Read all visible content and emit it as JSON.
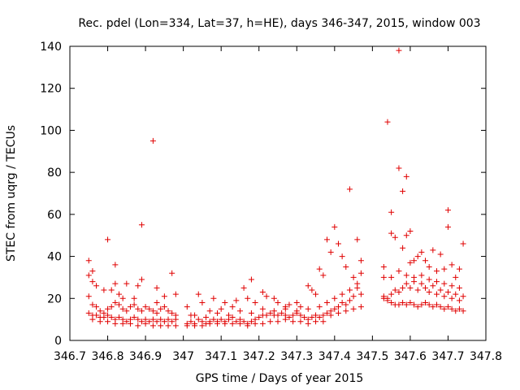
{
  "chart_data": {
    "type": "scatter",
    "title": "Rec. pdel (Lon=334, Lat=37, h=HE), days 346-347, 2015, window 003",
    "xlabel": "GPS time / Days of year 2015",
    "ylabel": "STEC from uqrg / TECUs",
    "xlim": [
      346.7,
      347.8
    ],
    "ylim": [
      0,
      140
    ],
    "xticks": [
      "346.7",
      "346.8",
      "346.9",
      "347",
      "347.1",
      "347.2",
      "347.3",
      "347.4",
      "347.5",
      "347.6",
      "347.7",
      "347.8"
    ],
    "yticks": [
      "0",
      "20",
      "40",
      "60",
      "80",
      "100",
      "120",
      "140"
    ],
    "grid": false,
    "marker": "+",
    "color": "#e00000",
    "series": [
      {
        "name": "",
        "points": [
          [
            346.75,
            38
          ],
          [
            346.75,
            31
          ],
          [
            346.76,
            33
          ],
          [
            346.76,
            28
          ],
          [
            346.77,
            26
          ],
          [
            346.79,
            24
          ],
          [
            346.8,
            48
          ],
          [
            346.81,
            24
          ],
          [
            346.82,
            27
          ],
          [
            346.82,
            36
          ],
          [
            346.84,
            20
          ],
          [
            346.85,
            27
          ],
          [
            346.88,
            26
          ],
          [
            346.89,
            55
          ],
          [
            346.89,
            29
          ],
          [
            346.92,
            95
          ],
          [
            346.93,
            25
          ],
          [
            346.95,
            21
          ],
          [
            346.97,
            32
          ],
          [
            346.98,
            22
          ],
          [
            346.93,
            18
          ],
          [
            346.87,
            20
          ],
          [
            346.83,
            22
          ],
          [
            346.75,
            21
          ],
          [
            346.76,
            17
          ],
          [
            346.77,
            16
          ],
          [
            346.78,
            14
          ],
          [
            346.79,
            13
          ],
          [
            346.8,
            15
          ],
          [
            346.81,
            16
          ],
          [
            346.82,
            18
          ],
          [
            346.83,
            17
          ],
          [
            346.84,
            15
          ],
          [
            346.85,
            14
          ],
          [
            346.86,
            16
          ],
          [
            346.87,
            17
          ],
          [
            346.88,
            15
          ],
          [
            346.89,
            14
          ],
          [
            346.9,
            16
          ],
          [
            346.91,
            15
          ],
          [
            346.92,
            14
          ],
          [
            346.93,
            13
          ],
          [
            346.94,
            15
          ],
          [
            346.95,
            16
          ],
          [
            346.96,
            14
          ],
          [
            346.97,
            13
          ],
          [
            346.98,
            12
          ],
          [
            346.75,
            13
          ],
          [
            346.76,
            12
          ],
          [
            346.77,
            12
          ],
          [
            346.78,
            11
          ],
          [
            346.79,
            11
          ],
          [
            346.8,
            12
          ],
          [
            346.81,
            11
          ],
          [
            346.82,
            10
          ],
          [
            346.83,
            11
          ],
          [
            346.84,
            10
          ],
          [
            346.85,
            9
          ],
          [
            346.86,
            10
          ],
          [
            346.87,
            11
          ],
          [
            346.88,
            10
          ],
          [
            346.89,
            9
          ],
          [
            346.9,
            10
          ],
          [
            346.91,
            9
          ],
          [
            346.92,
            10
          ],
          [
            346.93,
            9
          ],
          [
            346.94,
            10
          ],
          [
            346.95,
            9
          ],
          [
            346.96,
            10
          ],
          [
            346.97,
            9
          ],
          [
            346.98,
            10
          ],
          [
            346.76,
            10
          ],
          [
            346.78,
            9
          ],
          [
            346.8,
            9
          ],
          [
            346.82,
            8
          ],
          [
            346.84,
            8
          ],
          [
            346.86,
            8
          ],
          [
            346.88,
            7
          ],
          [
            346.9,
            8
          ],
          [
            346.92,
            7
          ],
          [
            346.94,
            7
          ],
          [
            346.96,
            7
          ],
          [
            346.98,
            7
          ],
          [
            347.01,
            16
          ],
          [
            347.02,
            12
          ],
          [
            347.04,
            22
          ],
          [
            347.05,
            18
          ],
          [
            347.07,
            14
          ],
          [
            347.08,
            20
          ],
          [
            347.1,
            15
          ],
          [
            347.11,
            18
          ],
          [
            347.13,
            16
          ],
          [
            347.14,
            19
          ],
          [
            347.16,
            25
          ],
          [
            347.17,
            20
          ],
          [
            347.18,
            29
          ],
          [
            347.19,
            18
          ],
          [
            347.21,
            23
          ],
          [
            347.22,
            21
          ],
          [
            347.24,
            20
          ],
          [
            347.25,
            18
          ],
          [
            347.27,
            16
          ],
          [
            347.28,
            17
          ],
          [
            347.3,
            18
          ],
          [
            347.31,
            16
          ],
          [
            347.33,
            26
          ],
          [
            347.34,
            24
          ],
          [
            347.35,
            22
          ],
          [
            347.36,
            34
          ],
          [
            347.37,
            31
          ],
          [
            347.01,
            8
          ],
          [
            347.02,
            9
          ],
          [
            347.03,
            8
          ],
          [
            347.04,
            10
          ],
          [
            347.05,
            9
          ],
          [
            347.06,
            8
          ],
          [
            347.07,
            9
          ],
          [
            347.08,
            10
          ],
          [
            347.09,
            9
          ],
          [
            347.1,
            10
          ],
          [
            347.11,
            9
          ],
          [
            347.12,
            10
          ],
          [
            347.13,
            11
          ],
          [
            347.14,
            9
          ],
          [
            347.15,
            10
          ],
          [
            347.16,
            9
          ],
          [
            347.17,
            8
          ],
          [
            347.18,
            9
          ],
          [
            347.19,
            10
          ],
          [
            347.2,
            11
          ],
          [
            347.21,
            12
          ],
          [
            347.22,
            12
          ],
          [
            347.23,
            13
          ],
          [
            347.24,
            12
          ],
          [
            347.25,
            12
          ],
          [
            347.26,
            13
          ],
          [
            347.27,
            12
          ],
          [
            347.28,
            11
          ],
          [
            347.29,
            12
          ],
          [
            347.3,
            13
          ],
          [
            347.31,
            12
          ],
          [
            347.32,
            11
          ],
          [
            347.33,
            10
          ],
          [
            347.34,
            11
          ],
          [
            347.35,
            12
          ],
          [
            347.36,
            11
          ],
          [
            347.37,
            12
          ],
          [
            347.01,
            7
          ],
          [
            347.03,
            7
          ],
          [
            347.05,
            7
          ],
          [
            347.07,
            8
          ],
          [
            347.09,
            8
          ],
          [
            347.11,
            8
          ],
          [
            347.13,
            8
          ],
          [
            347.15,
            8
          ],
          [
            347.17,
            7
          ],
          [
            347.19,
            8
          ],
          [
            347.21,
            8
          ],
          [
            347.23,
            9
          ],
          [
            347.25,
            9
          ],
          [
            347.27,
            10
          ],
          [
            347.29,
            9
          ],
          [
            347.31,
            9
          ],
          [
            347.33,
            8
          ],
          [
            347.35,
            9
          ],
          [
            347.37,
            9
          ],
          [
            347.03,
            12
          ],
          [
            347.06,
            11
          ],
          [
            347.09,
            13
          ],
          [
            347.12,
            12
          ],
          [
            347.15,
            14
          ],
          [
            347.18,
            13
          ],
          [
            347.21,
            15
          ],
          [
            347.24,
            14
          ],
          [
            347.27,
            15
          ],
          [
            347.3,
            14
          ],
          [
            347.33,
            15
          ],
          [
            347.36,
            16
          ],
          [
            347.38,
            48
          ],
          [
            347.4,
            54
          ],
          [
            347.41,
            46
          ],
          [
            347.43,
            35
          ],
          [
            347.44,
            72
          ],
          [
            347.45,
            30
          ],
          [
            347.46,
            48
          ],
          [
            347.47,
            38
          ],
          [
            347.47,
            32
          ],
          [
            347.39,
            42
          ],
          [
            347.42,
            40
          ],
          [
            347.38,
            13
          ],
          [
            347.39,
            14
          ],
          [
            347.4,
            15
          ],
          [
            347.41,
            16
          ],
          [
            347.42,
            18
          ],
          [
            347.43,
            17
          ],
          [
            347.44,
            19
          ],
          [
            347.45,
            21
          ],
          [
            347.46,
            25
          ],
          [
            347.47,
            22
          ],
          [
            347.38,
            18
          ],
          [
            347.4,
            20
          ],
          [
            347.42,
            22
          ],
          [
            347.44,
            24
          ],
          [
            347.46,
            27
          ],
          [
            347.39,
            12
          ],
          [
            347.41,
            13
          ],
          [
            347.43,
            14
          ],
          [
            347.45,
            15
          ],
          [
            347.47,
            16
          ],
          [
            347.53,
            35
          ],
          [
            347.53,
            30
          ],
          [
            347.54,
            104
          ],
          [
            347.55,
            61
          ],
          [
            347.55,
            51
          ],
          [
            347.56,
            49
          ],
          [
            347.57,
            138
          ],
          [
            347.57,
            82
          ],
          [
            347.58,
            71
          ],
          [
            347.58,
            44
          ],
          [
            347.59,
            78
          ],
          [
            347.59,
            50
          ],
          [
            347.6,
            52
          ],
          [
            347.6,
            37
          ],
          [
            347.61,
            38
          ],
          [
            347.62,
            40
          ],
          [
            347.63,
            42
          ],
          [
            347.64,
            38
          ],
          [
            347.65,
            35
          ],
          [
            347.66,
            43
          ],
          [
            347.67,
            33
          ],
          [
            347.68,
            41
          ],
          [
            347.69,
            34
          ],
          [
            347.7,
            62
          ],
          [
            347.7,
            54
          ],
          [
            347.71,
            36
          ],
          [
            347.72,
            30
          ],
          [
            347.73,
            34
          ],
          [
            347.74,
            46
          ],
          [
            347.53,
            21
          ],
          [
            347.54,
            20
          ],
          [
            347.55,
            22
          ],
          [
            347.56,
            24
          ],
          [
            347.57,
            23
          ],
          [
            347.58,
            25
          ],
          [
            347.59,
            27
          ],
          [
            347.6,
            25
          ],
          [
            347.61,
            28
          ],
          [
            347.62,
            24
          ],
          [
            347.63,
            27
          ],
          [
            347.64,
            25
          ],
          [
            347.65,
            23
          ],
          [
            347.66,
            26
          ],
          [
            347.67,
            22
          ],
          [
            347.68,
            24
          ],
          [
            347.69,
            21
          ],
          [
            347.7,
            23
          ],
          [
            347.71,
            20
          ],
          [
            347.72,
            22
          ],
          [
            347.73,
            19
          ],
          [
            347.74,
            21
          ],
          [
            347.53,
            20
          ],
          [
            347.54,
            19
          ],
          [
            347.55,
            18
          ],
          [
            347.56,
            17
          ],
          [
            347.57,
            17
          ],
          [
            347.58,
            18
          ],
          [
            347.59,
            17
          ],
          [
            347.6,
            18
          ],
          [
            347.61,
            17
          ],
          [
            347.62,
            16
          ],
          [
            347.63,
            17
          ],
          [
            347.64,
            18
          ],
          [
            347.65,
            17
          ],
          [
            347.66,
            16
          ],
          [
            347.67,
            17
          ],
          [
            347.68,
            16
          ],
          [
            347.69,
            15
          ],
          [
            347.7,
            16
          ],
          [
            347.71,
            15
          ],
          [
            347.72,
            14
          ],
          [
            347.73,
            15
          ],
          [
            347.74,
            14
          ],
          [
            347.55,
            30
          ],
          [
            347.57,
            33
          ],
          [
            347.59,
            31
          ],
          [
            347.61,
            30
          ],
          [
            347.63,
            31
          ],
          [
            347.65,
            29
          ],
          [
            347.67,
            28
          ],
          [
            347.69,
            27
          ],
          [
            347.71,
            26
          ],
          [
            347.73,
            25
          ]
        ]
      }
    ]
  }
}
